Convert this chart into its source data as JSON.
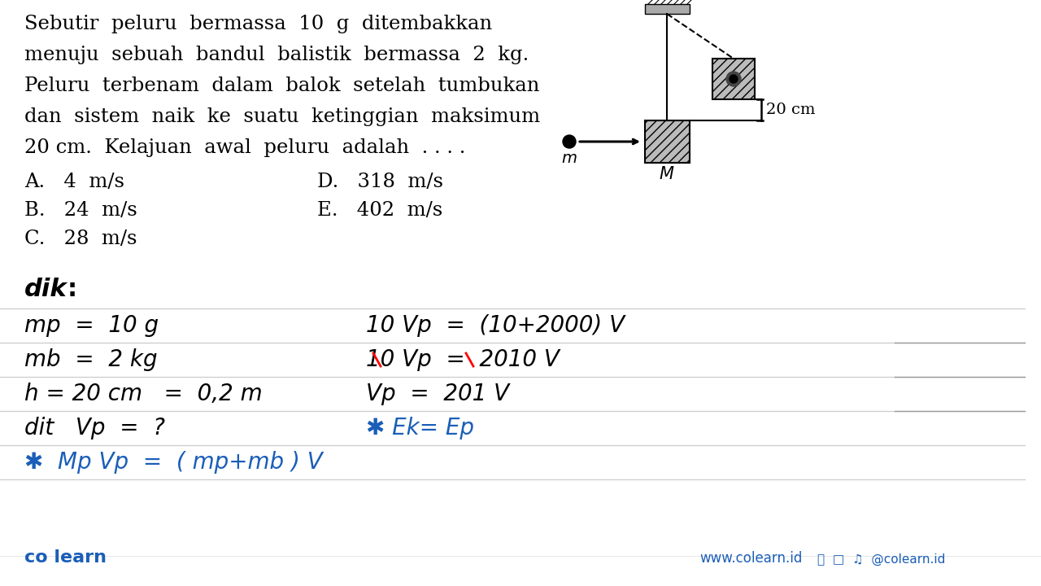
{
  "bg_color": "#ffffff",
  "text_color": "#000000",
  "blue_color": "#1a5eb8",
  "question_lines": [
    "Sebutir  peluru  bermassa  10  g  ditembakkan",
    "menuju  sebuah  bandul  balistik  bermassa  2  kg.",
    "Peluru  terbenam  dalam  balok  setelah  tumbukan",
    "dan  sistem  naik  ke  suatu  ketinggian  maksimum",
    "20 cm.  Kelajuan  awal  peluru  adalah  . . . ."
  ],
  "opts_left": [
    "A.   4  m/s",
    "B.   24  m/s",
    "C.   28  m/s"
  ],
  "opts_right": [
    "D.   318  m/s",
    "E.   402  m/s"
  ],
  "footer_left": "co learn",
  "footer_web": "www.colearn.id",
  "footer_social": "   @colearn.id",
  "blue_light": "#3a7bd5"
}
